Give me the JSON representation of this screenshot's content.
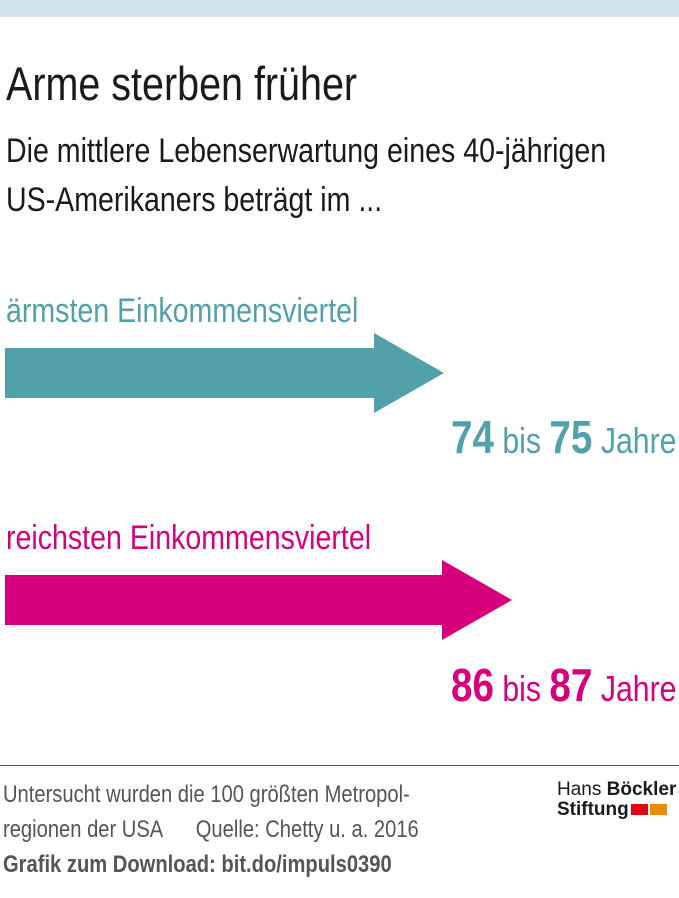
{
  "title": "Arme sterben früher",
  "subtitle_line1": "Die mittlere Lebenserwartung eines 40-jährigen",
  "subtitle_line2": "US-Amerikaners beträgt im ...",
  "chart_data": {
    "type": "bar",
    "orientation": "horizontal-arrows",
    "categories": [
      "ärmsten Einkommensviertel",
      "reichsten Einkommensviertel"
    ],
    "series": [
      {
        "values_low": [
          74,
          86
        ],
        "values_high": [
          75,
          87
        ]
      }
    ],
    "value_labels": [
      {
        "low": "74",
        "mid": "bis",
        "high": "75",
        "unit": "Jahre"
      },
      {
        "low": "86",
        "mid": "bis",
        "high": "87",
        "unit": "Jahre"
      }
    ],
    "colors": [
      "#52a0aa",
      "#d6007e"
    ]
  },
  "footer": {
    "line1": "Untersucht wurden die 100 größten Metropol-",
    "line2": "regionen der USA      Quelle: Chetty u. a. 2016",
    "line3": "Grafik zum Download: bit.do/impuls0390"
  },
  "logo": {
    "line1a": "Hans",
    "line1b": "Böckler",
    "line2": "Stiftung",
    "colors": [
      "#e30613",
      "#f08a00"
    ]
  }
}
